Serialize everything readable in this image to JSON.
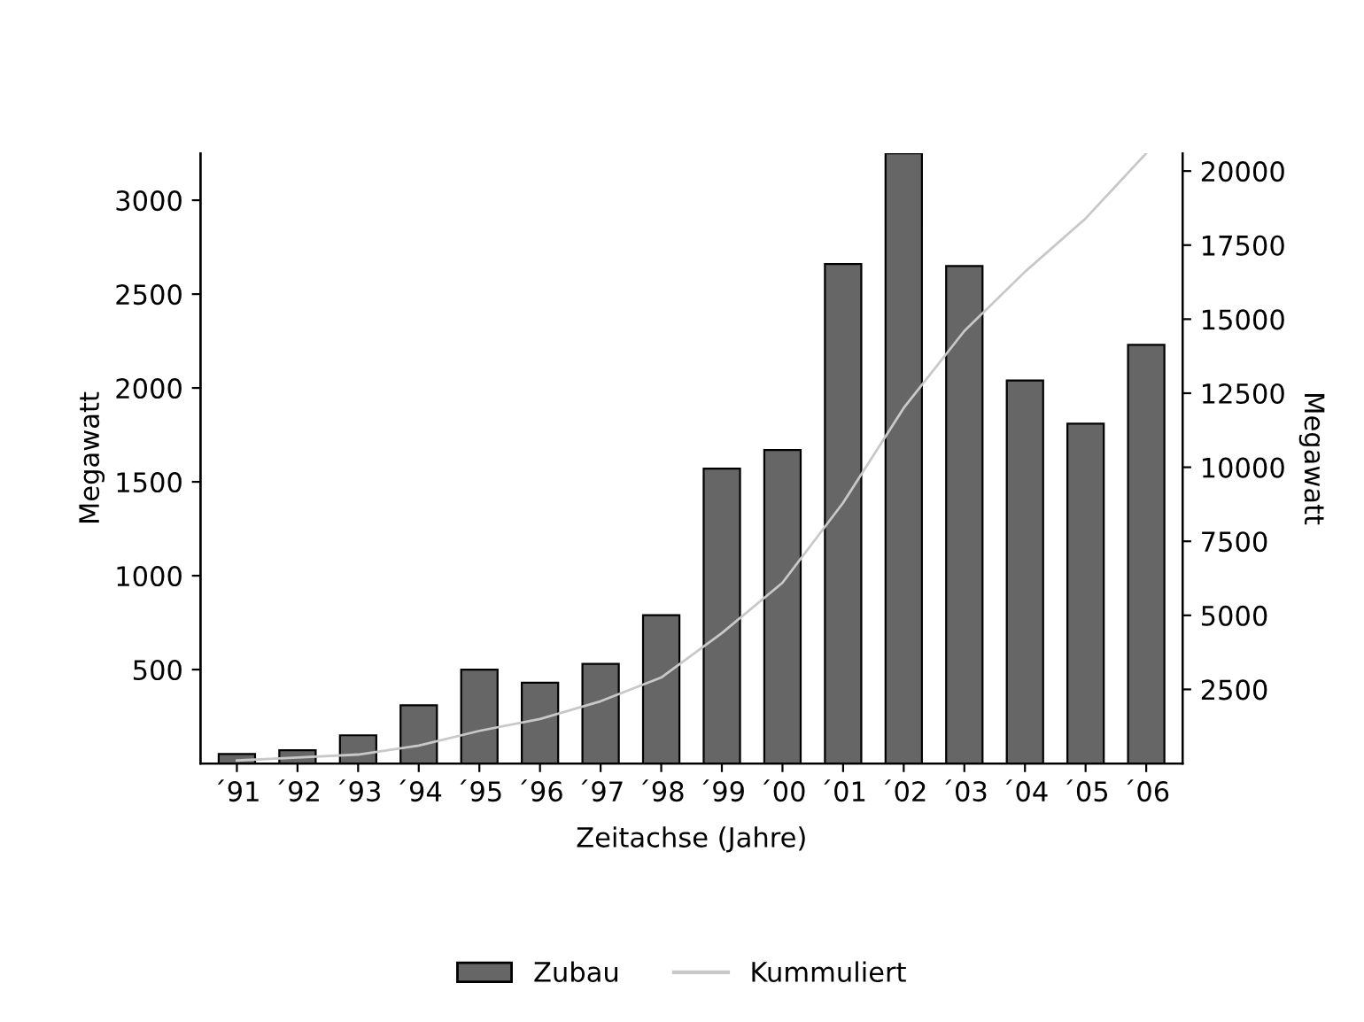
{
  "chart_data": {
    "type": "bar",
    "xlabel": "Zeitachse (Jahre)",
    "ylabel": "Megawatt",
    "y2label": "Megawatt",
    "categories": [
      "´91",
      "´92",
      "´93",
      "´94",
      "´95",
      "´96",
      "´97",
      "´98",
      "´99",
      "´00",
      "´01",
      "´02",
      "´03",
      "´04",
      "´05",
      "´06"
    ],
    "series": [
      {
        "name": "Zubau",
        "color": "#666666",
        "values": [
          50,
          70,
          150,
          310,
          500,
          430,
          530,
          790,
          1570,
          1670,
          2660,
          3250,
          2650,
          2040,
          1810,
          2230
        ]
      },
      {
        "name": "Kummuliert",
        "type": "line",
        "axis": "y2",
        "color": "#c8c8c8",
        "values": [
          100,
          200,
          300,
          600,
          1100,
          1500,
          2100,
          2900,
          4400,
          6100,
          8800,
          12000,
          14600,
          16600,
          18400,
          20600
        ]
      }
    ],
    "ylim": [
      0,
      3250
    ],
    "yticks": [
      500,
      1000,
      1500,
      2000,
      2500,
      3000
    ],
    "y2lim": [
      0,
      20600
    ],
    "y2ticks": [
      2500,
      5000,
      7500,
      10000,
      12500,
      15000,
      17500,
      20000
    ],
    "grid": false,
    "legend": "bottom"
  }
}
